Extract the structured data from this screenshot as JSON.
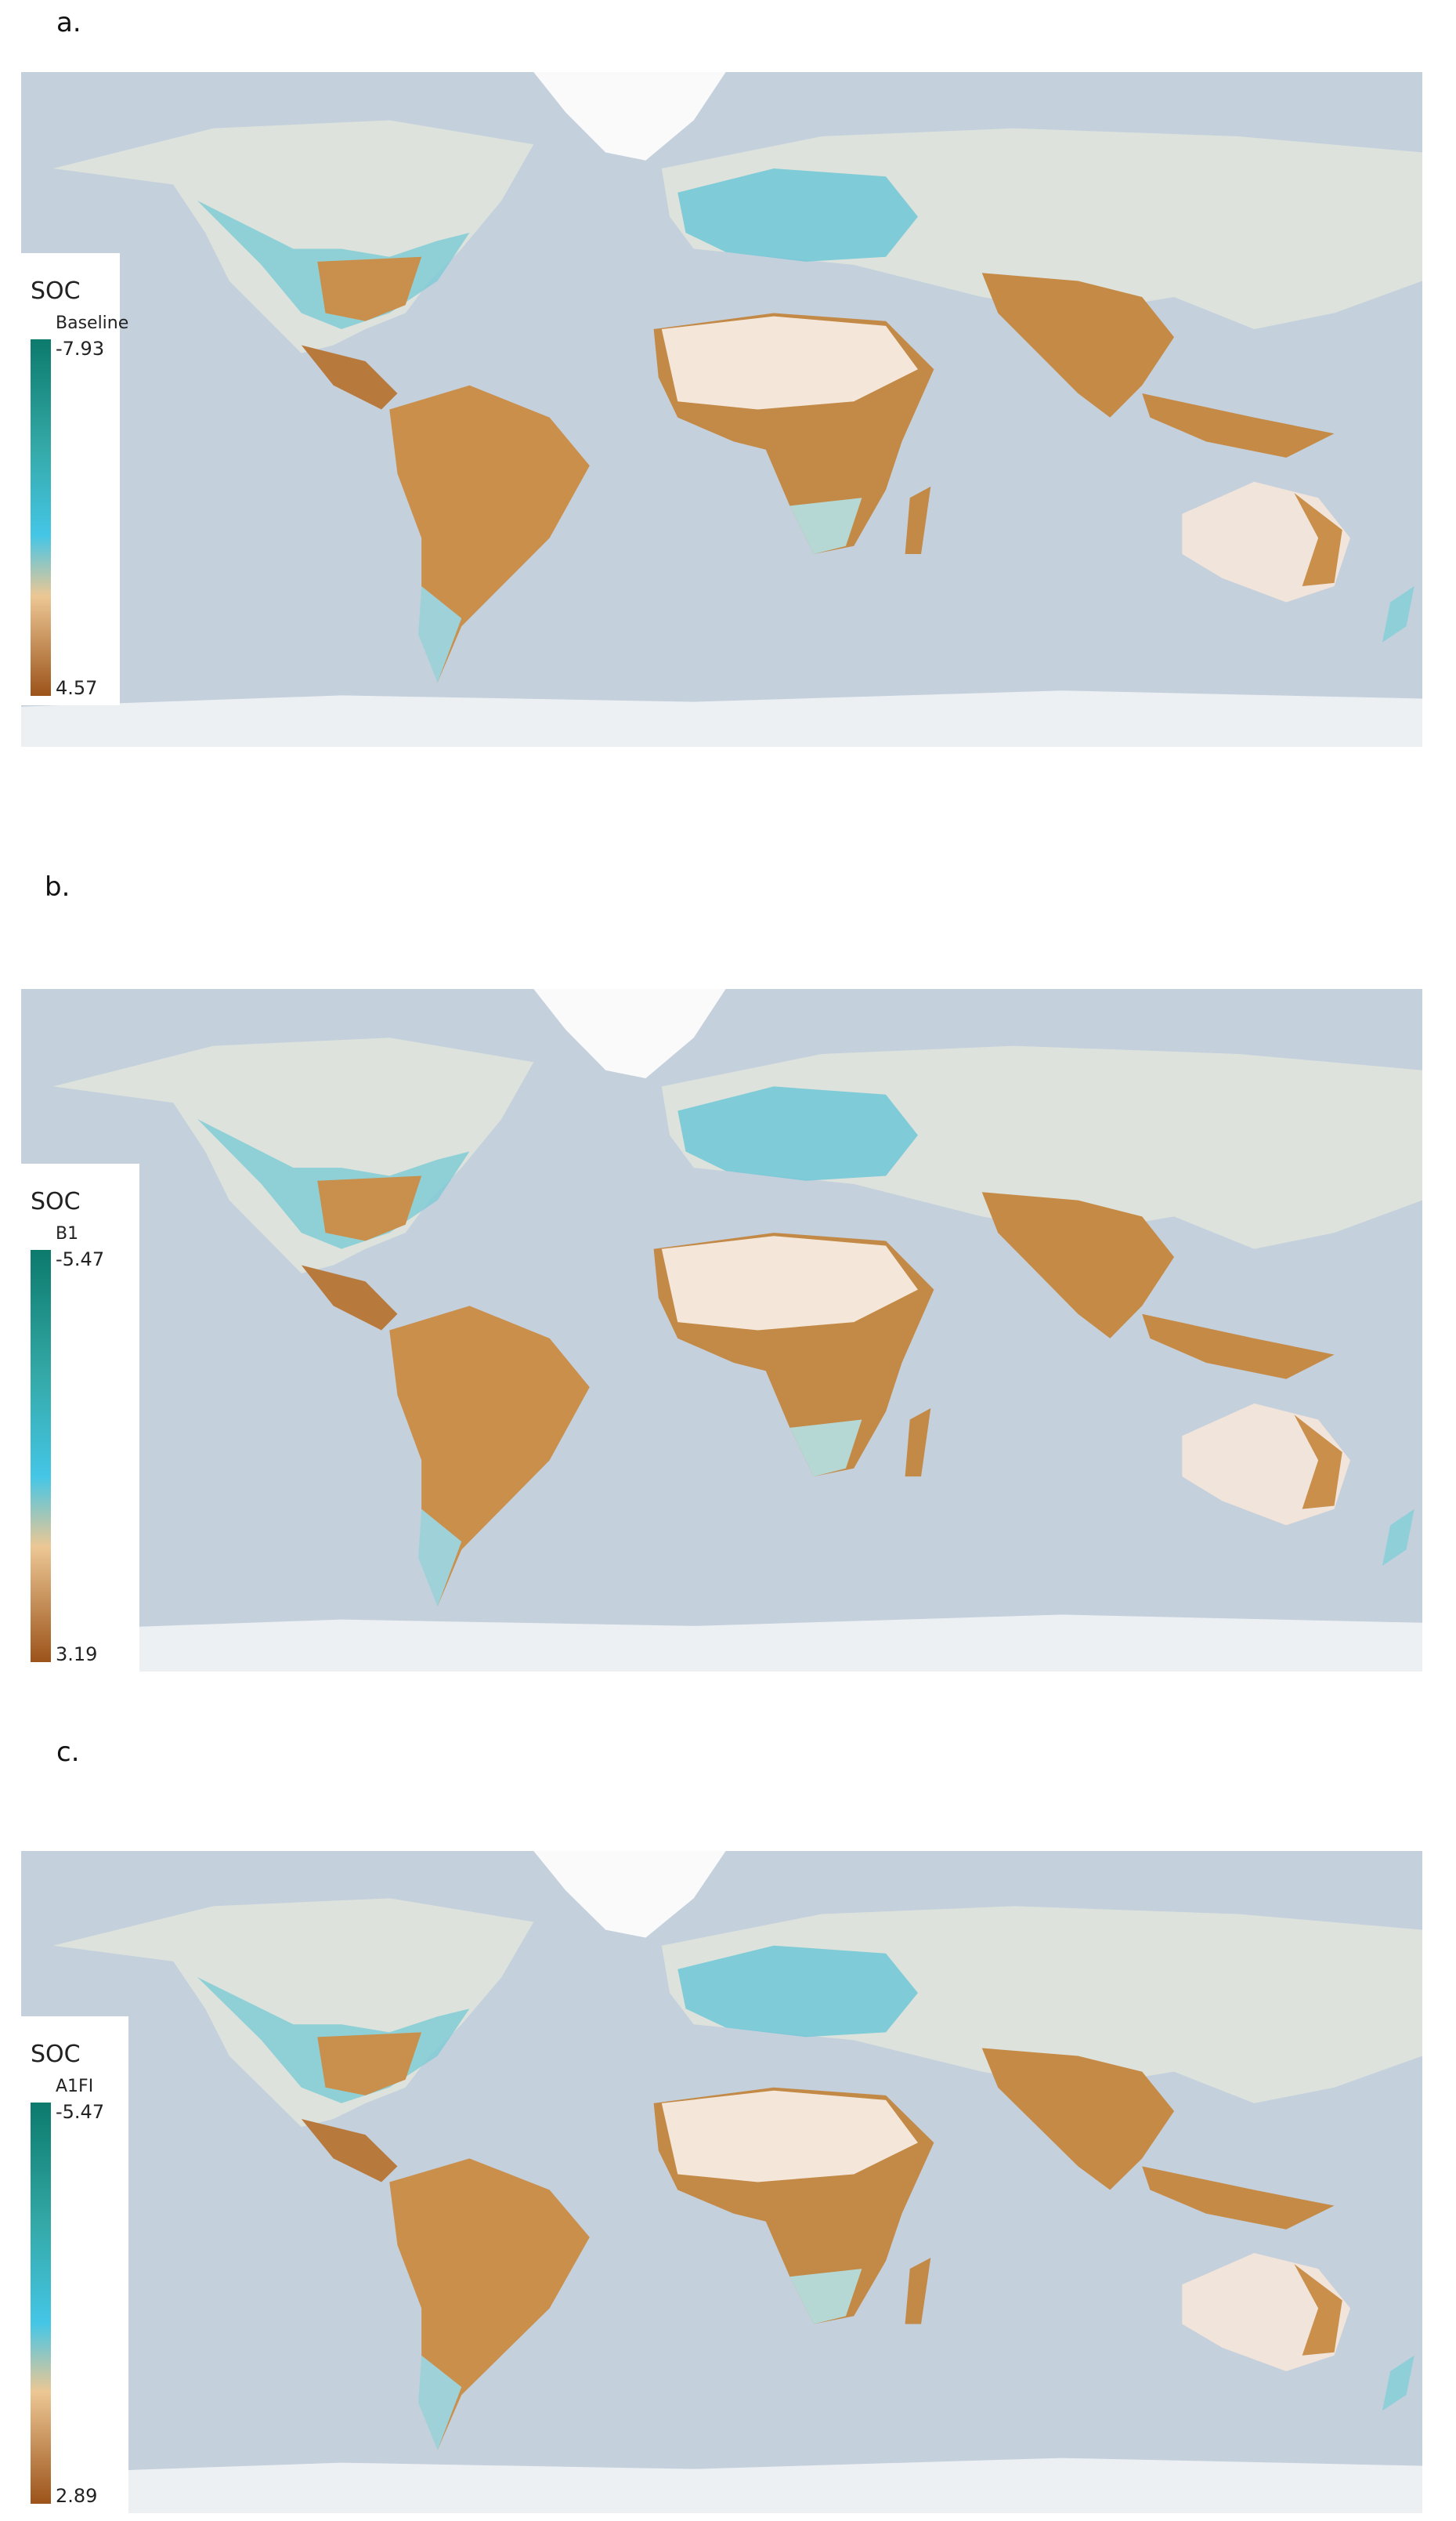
{
  "panels": [
    {
      "label": "a.",
      "legend": {
        "title": "SOC",
        "scenario": "Baseline",
        "top_label": "-7.93",
        "bottom_label": "4.57"
      }
    },
    {
      "label": "b.",
      "legend": {
        "title": "SOC",
        "scenario": "B1",
        "top_label": "-5.47",
        "bottom_label": "3.19"
      }
    },
    {
      "label": "c.",
      "legend": {
        "title": "SOC",
        "scenario": "A1FI",
        "top_label": "-5.47",
        "bottom_label": "2.89"
      }
    }
  ]
}
